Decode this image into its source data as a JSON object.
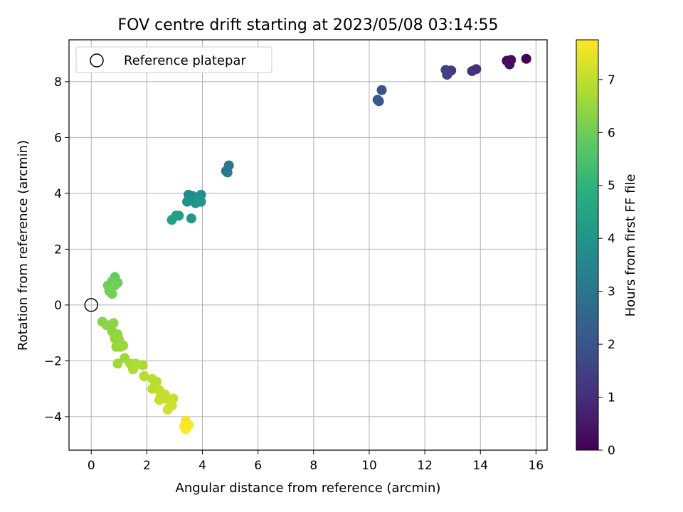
{
  "chart_data": {
    "type": "scatter",
    "title": "FOV centre drift starting at 2023/05/08 03:14:55",
    "xlabel": "Angular distance from reference (arcmin)",
    "ylabel": "Rotation from reference (arcmin)",
    "xlim": [
      -0.8,
      16.4
    ],
    "ylim": [
      -5.2,
      9.5
    ],
    "xticks": [
      0,
      2,
      4,
      6,
      8,
      10,
      12,
      14,
      16
    ],
    "yticks": [
      -4,
      -2,
      0,
      2,
      4,
      6,
      8
    ],
    "grid": true,
    "legend": {
      "placement": "top-left",
      "entries": [
        "Reference platepar"
      ]
    },
    "reference_point": {
      "x": 0,
      "y": 0
    },
    "colorbar": {
      "label": "Hours from first FF file",
      "colormap": "viridis",
      "range": [
        0,
        7.75
      ],
      "ticks": [
        0,
        1,
        2,
        3,
        4,
        5,
        6,
        7
      ]
    },
    "points": [
      {
        "x": 15.65,
        "y": 8.82,
        "c": 0.05
      },
      {
        "x": 14.95,
        "y": 8.75,
        "c": 0.15
      },
      {
        "x": 15.1,
        "y": 8.78,
        "c": 0.25
      },
      {
        "x": 15.05,
        "y": 8.62,
        "c": 0.3
      },
      {
        "x": 13.85,
        "y": 8.45,
        "c": 1.0
      },
      {
        "x": 13.7,
        "y": 8.38,
        "c": 1.1
      },
      {
        "x": 12.95,
        "y": 8.4,
        "c": 1.3
      },
      {
        "x": 12.8,
        "y": 8.35,
        "c": 1.4
      },
      {
        "x": 12.75,
        "y": 8.42,
        "c": 1.45
      },
      {
        "x": 12.8,
        "y": 8.25,
        "c": 1.5
      },
      {
        "x": 10.45,
        "y": 7.7,
        "c": 2.0
      },
      {
        "x": 10.3,
        "y": 7.35,
        "c": 2.1
      },
      {
        "x": 10.35,
        "y": 7.3,
        "c": 2.15
      },
      {
        "x": 4.95,
        "y": 5.0,
        "c": 3.0
      },
      {
        "x": 4.85,
        "y": 4.8,
        "c": 3.1
      },
      {
        "x": 4.9,
        "y": 4.75,
        "c": 3.15
      },
      {
        "x": 3.5,
        "y": 3.95,
        "c": 3.7
      },
      {
        "x": 3.65,
        "y": 3.9,
        "c": 3.75
      },
      {
        "x": 3.95,
        "y": 3.95,
        "c": 3.8
      },
      {
        "x": 3.55,
        "y": 3.85,
        "c": 3.85
      },
      {
        "x": 3.8,
        "y": 3.8,
        "c": 3.9
      },
      {
        "x": 3.45,
        "y": 3.7,
        "c": 3.95
      },
      {
        "x": 3.75,
        "y": 3.65,
        "c": 4.0
      },
      {
        "x": 3.95,
        "y": 3.7,
        "c": 4.05
      },
      {
        "x": 3.6,
        "y": 3.1,
        "c": 4.1
      },
      {
        "x": 3.15,
        "y": 3.2,
        "c": 4.3
      },
      {
        "x": 3.05,
        "y": 3.2,
        "c": 4.35
      },
      {
        "x": 2.9,
        "y": 3.05,
        "c": 4.4
      },
      {
        "x": 0.85,
        "y": 1.0,
        "c": 5.9
      },
      {
        "x": 0.75,
        "y": 0.85,
        "c": 5.95
      },
      {
        "x": 0.95,
        "y": 0.8,
        "c": 6.0
      },
      {
        "x": 0.6,
        "y": 0.7,
        "c": 6.0
      },
      {
        "x": 0.85,
        "y": 0.7,
        "c": 6.05
      },
      {
        "x": 0.65,
        "y": 0.5,
        "c": 6.05
      },
      {
        "x": 0.75,
        "y": 0.4,
        "c": 6.1
      },
      {
        "x": 0.4,
        "y": -0.6,
        "c": 6.3
      },
      {
        "x": 0.55,
        "y": -0.72,
        "c": 6.35
      },
      {
        "x": 0.8,
        "y": -0.65,
        "c": 6.35
      },
      {
        "x": 0.75,
        "y": -0.95,
        "c": 6.4
      },
      {
        "x": 0.95,
        "y": -1.05,
        "c": 6.45
      },
      {
        "x": 0.85,
        "y": -1.2,
        "c": 6.45
      },
      {
        "x": 1.0,
        "y": -1.25,
        "c": 6.5
      },
      {
        "x": 0.9,
        "y": -1.5,
        "c": 6.5
      },
      {
        "x": 1.15,
        "y": -1.45,
        "c": 6.55
      },
      {
        "x": 1.05,
        "y": -1.5,
        "c": 6.55
      },
      {
        "x": 1.2,
        "y": -1.9,
        "c": 6.6
      },
      {
        "x": 0.95,
        "y": -2.1,
        "c": 6.65
      },
      {
        "x": 1.4,
        "y": -2.1,
        "c": 6.7
      },
      {
        "x": 1.6,
        "y": -2.1,
        "c": 6.7
      },
      {
        "x": 1.85,
        "y": -2.15,
        "c": 6.75
      },
      {
        "x": 1.5,
        "y": -2.3,
        "c": 6.75
      },
      {
        "x": 1.55,
        "y": -2.2,
        "c": 6.8
      },
      {
        "x": 1.9,
        "y": -2.55,
        "c": 6.85
      },
      {
        "x": 2.2,
        "y": -2.65,
        "c": 6.9
      },
      {
        "x": 2.35,
        "y": -2.75,
        "c": 6.9
      },
      {
        "x": 2.3,
        "y": -2.9,
        "c": 6.95
      },
      {
        "x": 2.2,
        "y": -3.0,
        "c": 6.95
      },
      {
        "x": 2.45,
        "y": -3.05,
        "c": 7.0
      },
      {
        "x": 2.5,
        "y": -3.2,
        "c": 7.0
      },
      {
        "x": 2.65,
        "y": -3.2,
        "c": 7.05
      },
      {
        "x": 2.6,
        "y": -3.35,
        "c": 7.05
      },
      {
        "x": 2.45,
        "y": -3.4,
        "c": 7.1
      },
      {
        "x": 2.95,
        "y": -3.35,
        "c": 7.1
      },
      {
        "x": 2.85,
        "y": -3.5,
        "c": 7.15
      },
      {
        "x": 2.9,
        "y": -3.6,
        "c": 7.15
      },
      {
        "x": 2.75,
        "y": -3.75,
        "c": 7.2
      },
      {
        "x": 3.4,
        "y": -4.15,
        "c": 7.6
      },
      {
        "x": 3.5,
        "y": -4.3,
        "c": 7.65
      },
      {
        "x": 3.35,
        "y": -4.35,
        "c": 7.7
      },
      {
        "x": 3.4,
        "y": -4.45,
        "c": 7.75
      }
    ]
  }
}
